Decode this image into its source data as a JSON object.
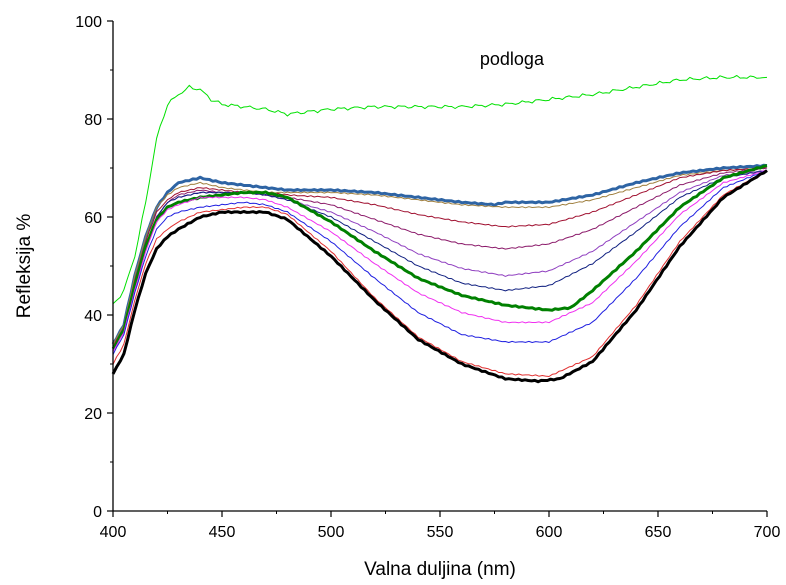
{
  "chart_data": {
    "type": "line",
    "title": "",
    "xlabel": "Valna duljina (nm)",
    "ylabel": "Refleksija %",
    "xlim": [
      400,
      700
    ],
    "ylim": [
      0,
      100
    ],
    "xticks": [
      400,
      450,
      500,
      550,
      600,
      650,
      700
    ],
    "yticks": [
      0,
      20,
      40,
      60,
      80,
      100
    ],
    "grid": false,
    "legend": "none",
    "annotations": [
      {
        "text": "podloga",
        "x": 583,
        "y": 91
      }
    ],
    "series": [
      {
        "color": "#00e000",
        "points": [
          [
            400,
            42
          ],
          [
            405,
            45
          ],
          [
            410,
            52
          ],
          [
            415,
            63
          ],
          [
            420,
            76
          ],
          [
            425,
            83
          ],
          [
            430,
            85
          ],
          [
            435,
            86.5
          ],
          [
            440,
            86
          ],
          [
            445,
            84
          ],
          [
            450,
            83
          ],
          [
            460,
            82.5
          ],
          [
            470,
            82
          ],
          [
            480,
            81
          ],
          [
            500,
            82
          ],
          [
            520,
            82.5
          ],
          [
            540,
            82.5
          ],
          [
            560,
            82.5
          ],
          [
            580,
            83
          ],
          [
            600,
            84
          ],
          [
            620,
            85
          ],
          [
            640,
            86.5
          ],
          [
            660,
            88
          ],
          [
            680,
            88.5
          ],
          [
            700,
            88.5
          ]
        ]
      },
      {
        "color": "#2e64a4",
        "points": [
          [
            400,
            34
          ],
          [
            405,
            38
          ],
          [
            410,
            48
          ],
          [
            415,
            56
          ],
          [
            420,
            62
          ],
          [
            425,
            65
          ],
          [
            430,
            67
          ],
          [
            435,
            67.5
          ],
          [
            440,
            68
          ],
          [
            450,
            67
          ],
          [
            460,
            66.5
          ],
          [
            470,
            66
          ],
          [
            480,
            65.5
          ],
          [
            500,
            65.5
          ],
          [
            520,
            65
          ],
          [
            540,
            64
          ],
          [
            560,
            63
          ],
          [
            575,
            62.5
          ],
          [
            580,
            63
          ],
          [
            600,
            63
          ],
          [
            620,
            64.5
          ],
          [
            640,
            67
          ],
          [
            660,
            69
          ],
          [
            680,
            70
          ],
          [
            700,
            70.5
          ]
        ]
      },
      {
        "color": "#a08040",
        "points": [
          [
            400,
            34
          ],
          [
            405,
            38
          ],
          [
            410,
            48
          ],
          [
            415,
            56
          ],
          [
            420,
            62
          ],
          [
            425,
            64.5
          ],
          [
            430,
            66
          ],
          [
            440,
            67
          ],
          [
            450,
            66
          ],
          [
            460,
            65.5
          ],
          [
            470,
            65
          ],
          [
            480,
            65
          ],
          [
            500,
            65
          ],
          [
            520,
            64.5
          ],
          [
            540,
            63.5
          ],
          [
            560,
            62.5
          ],
          [
            580,
            62
          ],
          [
            600,
            62
          ],
          [
            620,
            63.5
          ],
          [
            640,
            66
          ],
          [
            660,
            68.5
          ],
          [
            680,
            69.5
          ],
          [
            700,
            70
          ]
        ]
      },
      {
        "color": "#a01030",
        "points": [
          [
            400,
            33.5
          ],
          [
            405,
            37.5
          ],
          [
            410,
            47
          ],
          [
            415,
            55
          ],
          [
            420,
            61
          ],
          [
            425,
            63.5
          ],
          [
            430,
            65
          ],
          [
            440,
            66
          ],
          [
            450,
            65.5
          ],
          [
            460,
            65
          ],
          [
            470,
            65
          ],
          [
            480,
            64.5
          ],
          [
            500,
            64
          ],
          [
            520,
            62.5
          ],
          [
            540,
            60.5
          ],
          [
            560,
            59
          ],
          [
            580,
            58
          ],
          [
            600,
            58.5
          ],
          [
            620,
            61
          ],
          [
            640,
            64.5
          ],
          [
            660,
            68
          ],
          [
            680,
            69.5
          ],
          [
            700,
            70
          ]
        ]
      },
      {
        "color": "#8b1a6a",
        "points": [
          [
            400,
            33
          ],
          [
            405,
            37
          ],
          [
            410,
            46
          ],
          [
            415,
            54
          ],
          [
            420,
            60
          ],
          [
            425,
            63
          ],
          [
            430,
            64.5
          ],
          [
            440,
            65.5
          ],
          [
            450,
            65
          ],
          [
            460,
            65
          ],
          [
            470,
            64.5
          ],
          [
            480,
            64
          ],
          [
            500,
            62.5
          ],
          [
            520,
            59.5
          ],
          [
            540,
            56.5
          ],
          [
            560,
            54.5
          ],
          [
            580,
            53.5
          ],
          [
            600,
            54.5
          ],
          [
            620,
            57.5
          ],
          [
            640,
            62
          ],
          [
            660,
            66.5
          ],
          [
            680,
            69
          ],
          [
            700,
            70
          ]
        ]
      },
      {
        "color": "#9040c0",
        "points": [
          [
            400,
            33
          ],
          [
            405,
            37
          ],
          [
            410,
            46
          ],
          [
            415,
            54
          ],
          [
            420,
            60
          ],
          [
            425,
            63
          ],
          [
            430,
            64
          ],
          [
            440,
            65
          ],
          [
            450,
            65
          ],
          [
            460,
            65
          ],
          [
            470,
            64.5
          ],
          [
            480,
            63.5
          ],
          [
            500,
            61
          ],
          [
            520,
            57
          ],
          [
            540,
            52.5
          ],
          [
            560,
            49.5
          ],
          [
            580,
            48
          ],
          [
            600,
            49
          ],
          [
            620,
            53
          ],
          [
            640,
            59
          ],
          [
            660,
            65
          ],
          [
            680,
            68.5
          ],
          [
            700,
            69.5
          ]
        ]
      },
      {
        "color": "#102080",
        "points": [
          [
            400,
            33
          ],
          [
            405,
            37
          ],
          [
            410,
            46
          ],
          [
            415,
            54
          ],
          [
            420,
            60
          ],
          [
            425,
            63
          ],
          [
            430,
            64
          ],
          [
            440,
            65
          ],
          [
            450,
            65
          ],
          [
            460,
            65
          ],
          [
            470,
            64.5
          ],
          [
            480,
            63.5
          ],
          [
            500,
            60
          ],
          [
            520,
            55
          ],
          [
            540,
            50
          ],
          [
            560,
            46.5
          ],
          [
            580,
            45
          ],
          [
            600,
            46
          ],
          [
            620,
            50.5
          ],
          [
            640,
            57
          ],
          [
            660,
            64
          ],
          [
            680,
            68
          ],
          [
            700,
            69.5
          ]
        ]
      },
      {
        "color": "#008000",
        "points": [
          [
            400,
            33
          ],
          [
            405,
            37
          ],
          [
            410,
            46
          ],
          [
            415,
            54
          ],
          [
            420,
            59.5
          ],
          [
            425,
            62
          ],
          [
            430,
            63
          ],
          [
            440,
            64
          ],
          [
            450,
            64.5
          ],
          [
            460,
            65
          ],
          [
            470,
            65
          ],
          [
            480,
            64
          ],
          [
            500,
            59
          ],
          [
            520,
            53
          ],
          [
            540,
            47.5
          ],
          [
            560,
            44
          ],
          [
            580,
            42
          ],
          [
            600,
            41
          ],
          [
            610,
            41.5
          ],
          [
            620,
            45
          ],
          [
            640,
            53
          ],
          [
            660,
            62
          ],
          [
            680,
            68
          ],
          [
            700,
            70.5
          ]
        ]
      },
      {
        "color": "#f030f0",
        "points": [
          [
            400,
            32.5
          ],
          [
            405,
            36.5
          ],
          [
            410,
            45
          ],
          [
            415,
            53
          ],
          [
            420,
            59
          ],
          [
            425,
            61.5
          ],
          [
            430,
            62.5
          ],
          [
            440,
            64
          ],
          [
            450,
            64
          ],
          [
            460,
            64
          ],
          [
            470,
            63.5
          ],
          [
            480,
            62
          ],
          [
            500,
            57
          ],
          [
            520,
            50.5
          ],
          [
            540,
            44.5
          ],
          [
            560,
            40.5
          ],
          [
            580,
            38.5
          ],
          [
            600,
            38.5
          ],
          [
            620,
            42.5
          ],
          [
            640,
            51
          ],
          [
            660,
            60.5
          ],
          [
            680,
            67
          ],
          [
            700,
            69.5
          ]
        ]
      },
      {
        "color": "#2020e0",
        "points": [
          [
            400,
            32
          ],
          [
            405,
            36
          ],
          [
            410,
            44.5
          ],
          [
            415,
            52
          ],
          [
            420,
            57.5
          ],
          [
            425,
            60
          ],
          [
            430,
            61
          ],
          [
            440,
            62
          ],
          [
            450,
            62.5
          ],
          [
            460,
            63
          ],
          [
            470,
            62.5
          ],
          [
            480,
            61
          ],
          [
            500,
            55
          ],
          [
            520,
            47.5
          ],
          [
            540,
            40.5
          ],
          [
            560,
            36
          ],
          [
            580,
            34.5
          ],
          [
            600,
            34.5
          ],
          [
            620,
            38.5
          ],
          [
            640,
            47.5
          ],
          [
            660,
            58
          ],
          [
            680,
            66
          ],
          [
            700,
            69.5
          ]
        ]
      },
      {
        "color": "#e03030",
        "points": [
          [
            400,
            30
          ],
          [
            405,
            34
          ],
          [
            410,
            43
          ],
          [
            415,
            50.5
          ],
          [
            420,
            55.5
          ],
          [
            425,
            57.5
          ],
          [
            430,
            59
          ],
          [
            440,
            61
          ],
          [
            450,
            61.5
          ],
          [
            460,
            62
          ],
          [
            470,
            62
          ],
          [
            480,
            60.5
          ],
          [
            500,
            53
          ],
          [
            520,
            43.5
          ],
          [
            540,
            35.5
          ],
          [
            560,
            30.5
          ],
          [
            580,
            28
          ],
          [
            600,
            27.5
          ],
          [
            620,
            31.5
          ],
          [
            640,
            42
          ],
          [
            660,
            55
          ],
          [
            680,
            64.5
          ],
          [
            700,
            69.5
          ]
        ]
      },
      {
        "color": "#000000",
        "points": [
          [
            400,
            28
          ],
          [
            405,
            32
          ],
          [
            410,
            41
          ],
          [
            415,
            48.5
          ],
          [
            420,
            53.5
          ],
          [
            425,
            56
          ],
          [
            430,
            57.5
          ],
          [
            440,
            60
          ],
          [
            450,
            61
          ],
          [
            460,
            61
          ],
          [
            470,
            61
          ],
          [
            480,
            59.5
          ],
          [
            500,
            52
          ],
          [
            520,
            43
          ],
          [
            540,
            35
          ],
          [
            560,
            30
          ],
          [
            580,
            27
          ],
          [
            595,
            26.5
          ],
          [
            605,
            27
          ],
          [
            620,
            30.5
          ],
          [
            640,
            41
          ],
          [
            660,
            54
          ],
          [
            680,
            64
          ],
          [
            700,
            69.5
          ]
        ]
      }
    ]
  }
}
